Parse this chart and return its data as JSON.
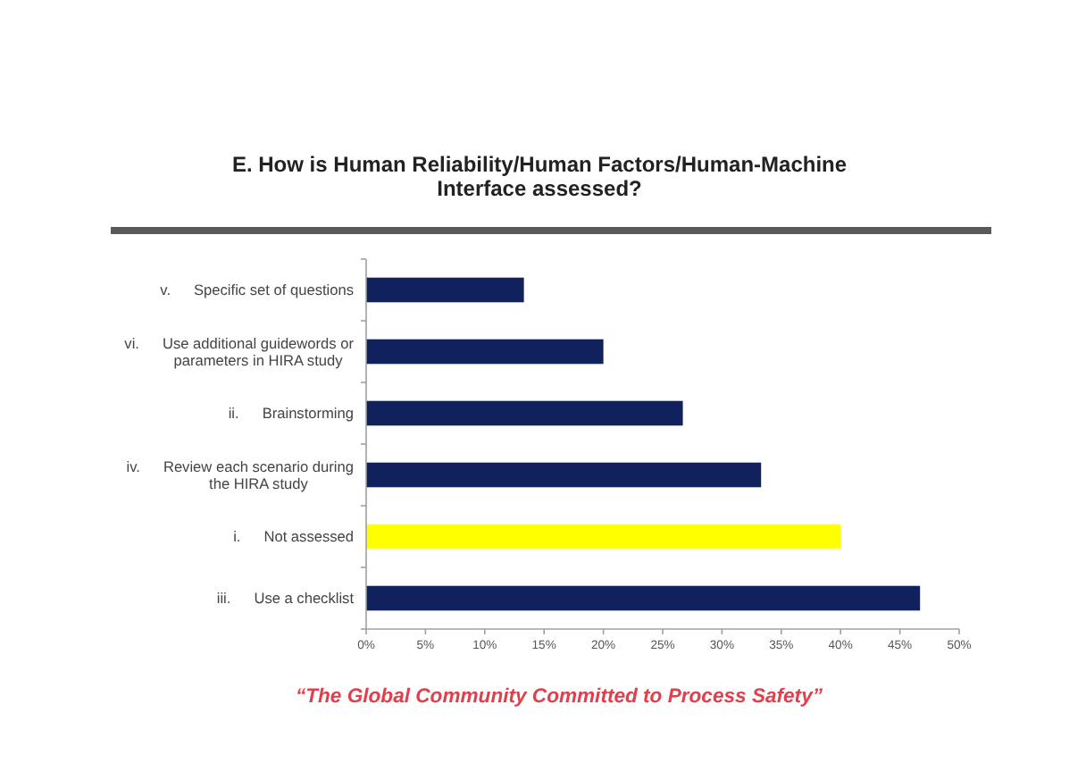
{
  "chart_data": {
    "type": "bar",
    "orientation": "horizontal",
    "title": "E. How is Human Reliability/Human Factors/Human-Machine Interface assessed?",
    "categories": [
      "v.\tSpecific set of questions",
      "vi.\tUse additional guidewords or parameters in HIRA study",
      "ii.\tBrainstorming",
      "iv.\tReview each scenario during the HIRA study",
      "i.\tNot assessed",
      "iii.\tUse a checklist"
    ],
    "values": [
      13.3,
      20,
      26.7,
      33.3,
      40,
      46.7
    ],
    "colors": [
      "#10215e",
      "#10215e",
      "#10215e",
      "#10215e",
      "#ffff00",
      "#10215e"
    ],
    "xlim": [
      0,
      50
    ],
    "xticks": [
      {
        "value": 0,
        "label": "0%"
      },
      {
        "value": 5,
        "label": "5%"
      },
      {
        "value": 10,
        "label": "10%"
      },
      {
        "value": 15,
        "label": "15%"
      },
      {
        "value": 20,
        "label": "20%"
      },
      {
        "value": 25,
        "label": "25%"
      },
      {
        "value": 30,
        "label": "30%"
      },
      {
        "value": 35,
        "label": "35%"
      },
      {
        "value": 40,
        "label": "40%"
      },
      {
        "value": 45,
        "label": "45%"
      },
      {
        "value": 50,
        "label": "50%"
      }
    ],
    "annotations": [
      "“The Global Community Committed to Process Safety”"
    ]
  }
}
